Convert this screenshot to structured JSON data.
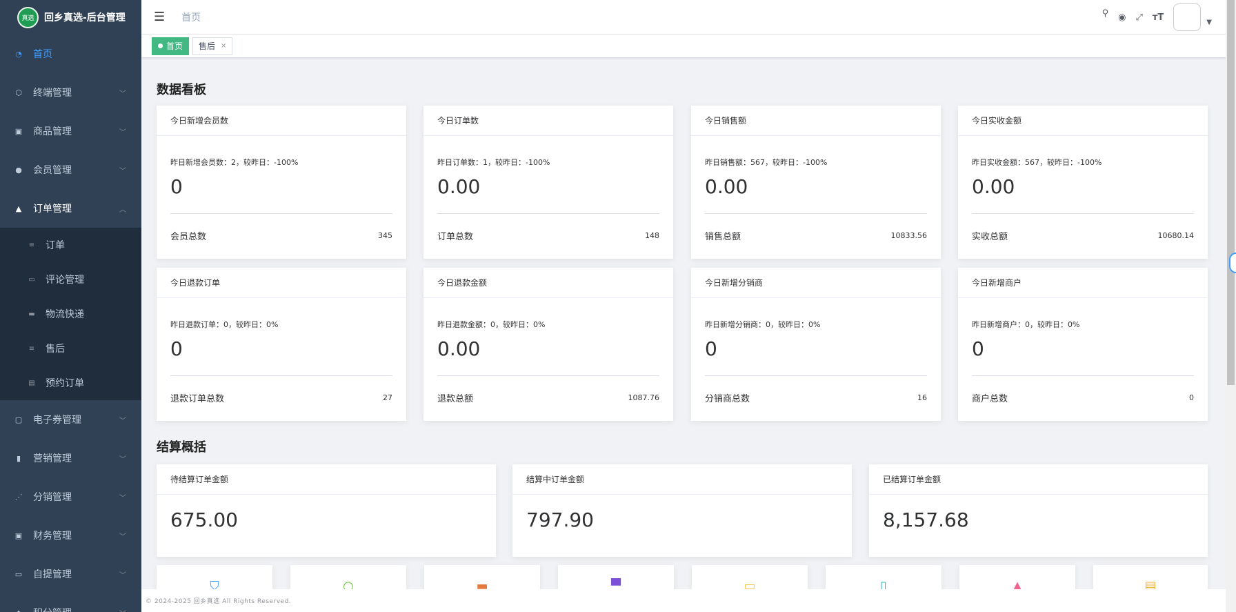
{
  "app": {
    "logo_badge": "真选",
    "title": "回乡真选-后台管理"
  },
  "header": {
    "breadcrumb": "首页"
  },
  "sidebar": {
    "items": [
      {
        "label": "首页",
        "icon": "dashboard-icon"
      },
      {
        "label": "终端管理",
        "icon": "cube-icon"
      },
      {
        "label": "商品管理",
        "icon": "goods-icon"
      },
      {
        "label": "会员管理",
        "icon": "people-icon"
      },
      {
        "label": "订单管理",
        "icon": "lock-icon"
      }
    ],
    "order_sub": [
      {
        "label": "订单",
        "icon": "doc-icon"
      },
      {
        "label": "评论管理",
        "icon": "comment-icon"
      },
      {
        "label": "物流快递",
        "icon": "truck-icon"
      },
      {
        "label": "售后",
        "icon": "doc-icon"
      },
      {
        "label": "预约订单",
        "icon": "list-icon"
      }
    ],
    "items_after": [
      {
        "label": "电子券管理",
        "icon": "coupon-icon"
      },
      {
        "label": "营销管理",
        "icon": "chart-icon"
      },
      {
        "label": "分销管理",
        "icon": "share-icon"
      },
      {
        "label": "财务管理",
        "icon": "money-icon"
      },
      {
        "label": "自提管理",
        "icon": "pickup-icon"
      },
      {
        "label": "积分管理",
        "icon": "points-icon"
      }
    ]
  },
  "tags": [
    {
      "label": "首页",
      "active": true
    },
    {
      "label": "售后",
      "close": "×"
    }
  ],
  "dashboard": {
    "title": "数据看板",
    "cards": [
      {
        "head": "今日新增会员数",
        "compare": "昨日新增会员数：2，较昨日：-100%",
        "value": "0",
        "foot_label": "会员总数",
        "foot_value": "345"
      },
      {
        "head": "今日订单数",
        "compare": "昨日订单数：1，较昨日：-100%",
        "value": "0.00",
        "foot_label": "订单总数",
        "foot_value": "148"
      },
      {
        "head": "今日销售额",
        "compare": "昨日销售额：567，较昨日：-100%",
        "value": "0.00",
        "foot_label": "销售总额",
        "foot_value": "10833.56"
      },
      {
        "head": "今日实收金额",
        "compare": "昨日实收金额：567，较昨日：-100%",
        "value": "0.00",
        "foot_label": "实收总额",
        "foot_value": "10680.14"
      },
      {
        "head": "今日退款订单",
        "compare": "昨日退款订单：0，较昨日：0%",
        "value": "0",
        "foot_label": "退款订单总数",
        "foot_value": "27"
      },
      {
        "head": "今日退款金额",
        "compare": "昨日退款金额：0，较昨日：0%",
        "value": "0.00",
        "foot_label": "退款总额",
        "foot_value": "1087.76"
      },
      {
        "head": "今日新增分销商",
        "compare": "昨日新增分销商：0，较昨日：0%",
        "value": "0",
        "foot_label": "分销商总数",
        "foot_value": "16"
      },
      {
        "head": "今日新增商户",
        "compare": "昨日新增商户：0，较昨日：0%",
        "value": "0",
        "foot_label": "商户总数",
        "foot_value": "0"
      }
    ]
  },
  "settlement": {
    "title": "结算概括",
    "cards": [
      {
        "head": "待结算订单金额",
        "value": "675.00"
      },
      {
        "head": "结算中订单金额",
        "value": "797.90"
      },
      {
        "head": "已结算订单金额",
        "value": "8,157.68"
      }
    ]
  },
  "shortcuts": [
    {
      "icon": "bag-icon",
      "color": "#409eff"
    },
    {
      "icon": "search-icon",
      "color": "#67c23a"
    },
    {
      "icon": "briefcase-icon",
      "color": "#e6793e"
    },
    {
      "icon": "cup-icon",
      "color": "#7b4fd6"
    },
    {
      "icon": "image-icon",
      "color": "#f3c642"
    },
    {
      "icon": "book-icon",
      "color": "#22b8b0"
    },
    {
      "icon": "inbox-icon",
      "color": "#f0658d"
    },
    {
      "icon": "doc-icon",
      "color": "#f1b33e"
    }
  ],
  "footer": {
    "text": "© 2024-2025 回乡真选 All Rights Reserved."
  }
}
